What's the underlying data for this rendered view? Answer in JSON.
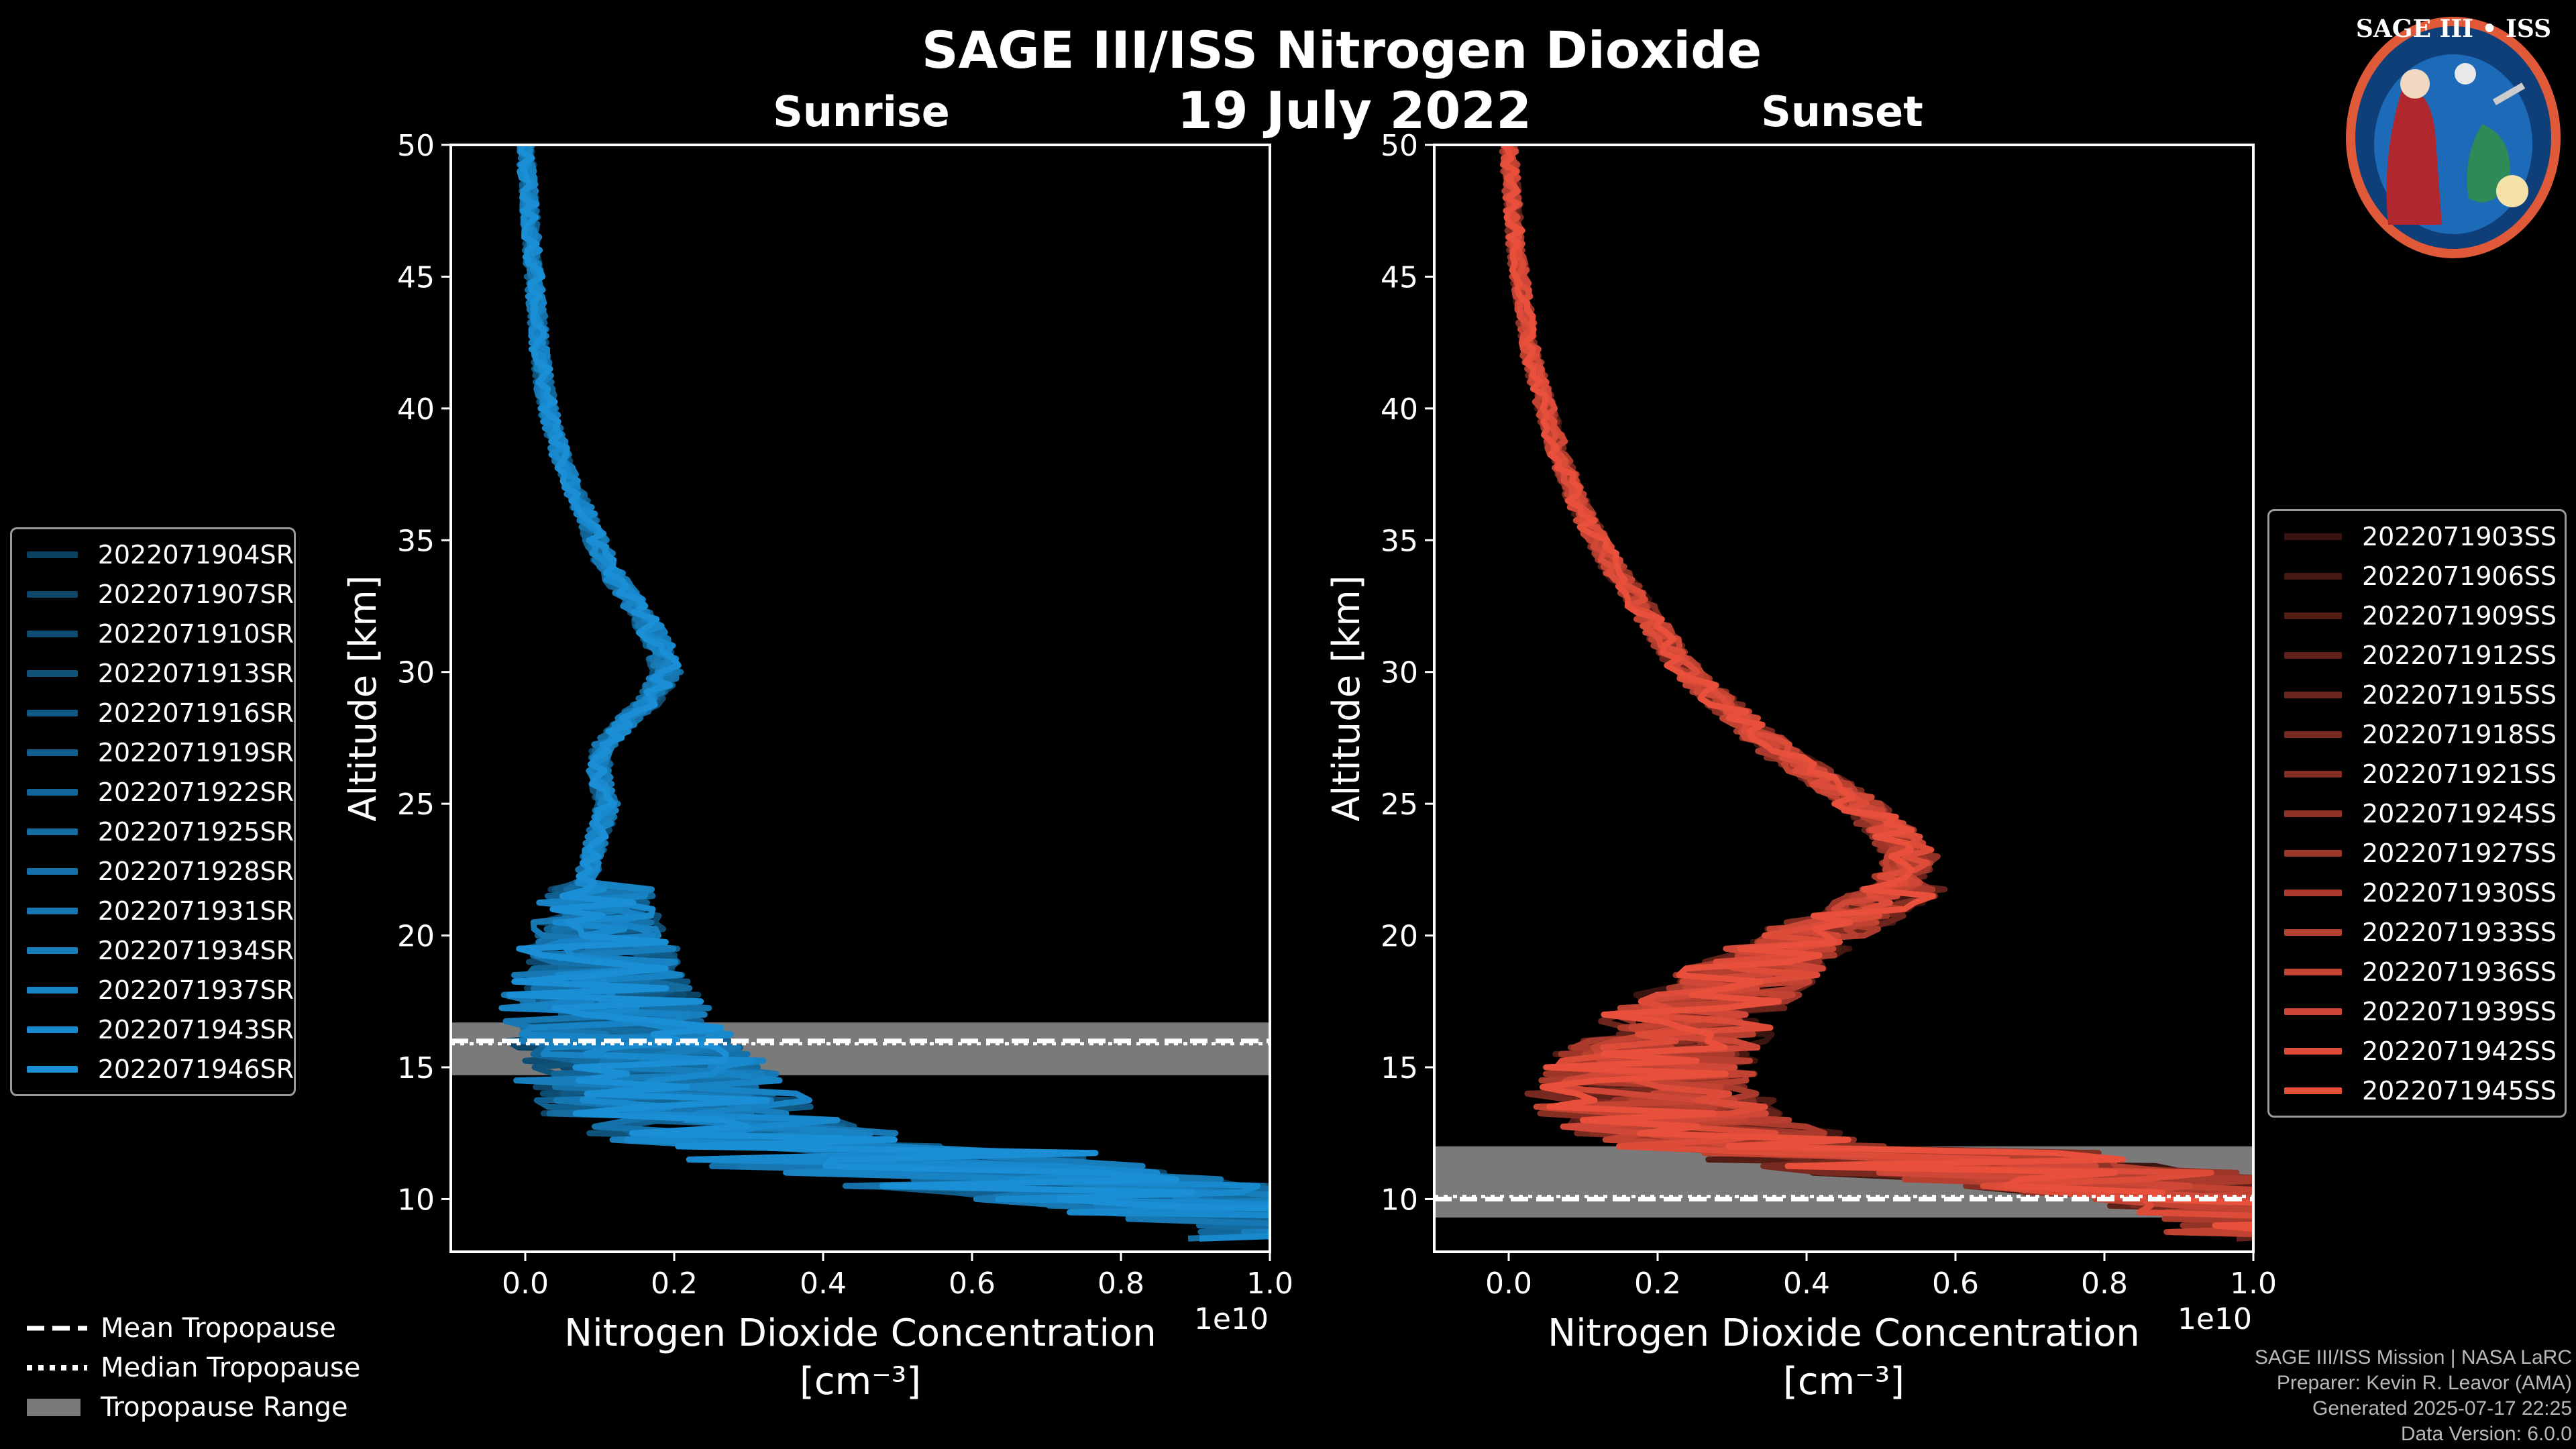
{
  "title": "SAGE III/ISS Nitrogen Dioxide",
  "date": "19 July 2022",
  "logo": {
    "label": "SAGE III • ISS"
  },
  "colors": {
    "sunrise": "#1a8fd6",
    "sunset": "#e8503c",
    "range": "#7a7a7a"
  },
  "chart_data": [
    {
      "type": "line",
      "name": "sunrise",
      "title": "Sunrise",
      "xlabel": "Nitrogen Dioxide Concentration",
      "xlabel_units": "[cm⁻³]",
      "x_scale_label": "1e10",
      "ylabel": "Altitude [km]",
      "xlim": [
        -0.1,
        1.0
      ],
      "ylim": [
        8,
        50
      ],
      "xticks": [
        0.0,
        0.2,
        0.4,
        0.6,
        0.8,
        1.0
      ],
      "xtick_labels": [
        "0.0",
        "0.2",
        "0.4",
        "0.6",
        "0.8",
        "1.0"
      ],
      "yticks": [
        10,
        15,
        20,
        25,
        30,
        35,
        40,
        45,
        50
      ],
      "ytick_labels": [
        "10",
        "15",
        "20",
        "25",
        "30",
        "35",
        "40",
        "45",
        "50"
      ],
      "series": [
        "2022071904SR",
        "2022071907SR",
        "2022071910SR",
        "2022071913SR",
        "2022071916SR",
        "2022071919SR",
        "2022071922SR",
        "2022071925SR",
        "2022071928SR",
        "2022071931SR",
        "2022071934SR",
        "2022071937SR",
        "2022071943SR",
        "2022071946SR"
      ],
      "profile": {
        "altitude": [
          50,
          48,
          46,
          44,
          42,
          40,
          38,
          36,
          34,
          32,
          31,
          30,
          29,
          28,
          27,
          26,
          25,
          24,
          23,
          22,
          21,
          20,
          19,
          18,
          17,
          16,
          15,
          14,
          13,
          12,
          11,
          10,
          9
        ],
        "no2": [
          0.0,
          0.005,
          0.01,
          0.015,
          0.02,
          0.03,
          0.05,
          0.08,
          0.11,
          0.16,
          0.18,
          0.19,
          0.17,
          0.13,
          0.1,
          0.1,
          0.11,
          0.1,
          0.09,
          0.08,
          0.06,
          0.06,
          0.05,
          0.05,
          0.05,
          0.06,
          0.08,
          0.1,
          0.15,
          0.25,
          0.4,
          0.7,
          1.0
        ]
      },
      "tropopause": {
        "mean": 16.0,
        "median": 16.0,
        "range": [
          14.7,
          16.7
        ]
      }
    },
    {
      "type": "line",
      "name": "sunset",
      "title": "Sunset",
      "xlabel": "Nitrogen Dioxide Concentration",
      "xlabel_units": "[cm⁻³]",
      "x_scale_label": "1e10",
      "ylabel": "Altitude [km]",
      "xlim": [
        -0.1,
        1.0
      ],
      "ylim": [
        8,
        50
      ],
      "xticks": [
        0.0,
        0.2,
        0.4,
        0.6,
        0.8,
        1.0
      ],
      "xtick_labels": [
        "0.0",
        "0.2",
        "0.4",
        "0.6",
        "0.8",
        "1.0"
      ],
      "yticks": [
        10,
        15,
        20,
        25,
        30,
        35,
        40,
        45,
        50
      ],
      "ytick_labels": [
        "10",
        "15",
        "20",
        "25",
        "30",
        "35",
        "40",
        "45",
        "50"
      ],
      "series": [
        "2022071903SS",
        "2022071906SS",
        "2022071909SS",
        "2022071912SS",
        "2022071915SS",
        "2022071918SS",
        "2022071921SS",
        "2022071924SS",
        "2022071927SS",
        "2022071930SS",
        "2022071933SS",
        "2022071936SS",
        "2022071939SS",
        "2022071942SS",
        "2022071945SS"
      ],
      "profile": {
        "altitude": [
          50,
          48,
          46,
          44,
          42,
          40,
          38,
          36,
          34,
          32,
          30,
          29,
          28,
          27,
          26,
          25,
          24,
          23,
          22,
          21,
          20,
          19,
          18,
          17,
          16,
          15,
          14,
          13,
          12,
          11,
          10,
          9
        ],
        "no2": [
          0.0,
          0.005,
          0.01,
          0.02,
          0.03,
          0.05,
          0.07,
          0.1,
          0.14,
          0.19,
          0.24,
          0.28,
          0.32,
          0.36,
          0.42,
          0.47,
          0.51,
          0.54,
          0.52,
          0.46,
          0.37,
          0.3,
          0.25,
          0.2,
          0.16,
          0.13,
          0.12,
          0.15,
          0.25,
          0.5,
          0.9,
          1.0
        ]
      },
      "tropopause": {
        "mean": 10.0,
        "median": 10.2,
        "range": [
          9.3,
          12.0
        ]
      }
    }
  ],
  "tropopause_legend": {
    "mean": "Mean Tropopause",
    "median": "Median Tropopause",
    "range": "Tropopause Range"
  },
  "footer": {
    "mission": "SAGE III/ISS Mission | NASA LaRC",
    "preparer": "Preparer: Kevin R. Leavor (AMA)",
    "generated": "Generated 2025-07-17 22:25",
    "version": "Data Version: 6.0.0"
  }
}
